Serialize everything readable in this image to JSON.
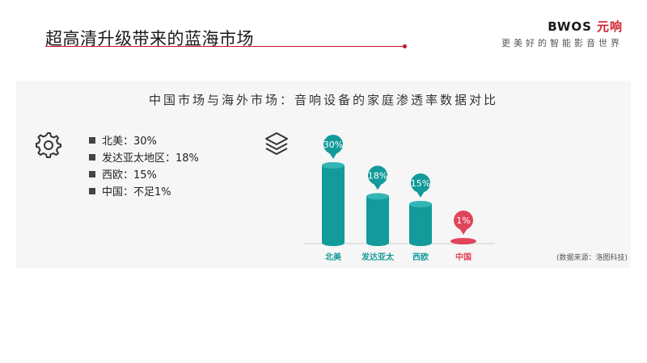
{
  "header": {
    "title": "超高清升级带来的蓝海市场",
    "brand_en": "BWOS",
    "brand_cn": "元响",
    "slogan": "更美好的智能影音世界"
  },
  "legend": [
    {
      "label": "北美：30%"
    },
    {
      "label": "发达亚太地区：18%"
    },
    {
      "label": "西欧：15%"
    },
    {
      "label": "中国：不足1%"
    }
  ],
  "source_note": "(数据来源：洛图科技)",
  "icons": {
    "left": "gear-icon",
    "right": "layers-icon"
  },
  "colors": {
    "teal": "#139a9a",
    "red": "#e0455a",
    "accent": "#c8102e"
  },
  "chart_data": {
    "type": "bar",
    "title": "中国市场与海外市场：音响设备的家庭渗透率数据对比",
    "categories": [
      "北美",
      "发达亚太",
      "西欧",
      "中国"
    ],
    "values": [
      30,
      18,
      15,
      1
    ],
    "data_labels": [
      "30%",
      "18%",
      "15%",
      "1%"
    ],
    "ylim": [
      0,
      30
    ],
    "xlabel": "",
    "ylabel": "",
    "grid": false
  }
}
